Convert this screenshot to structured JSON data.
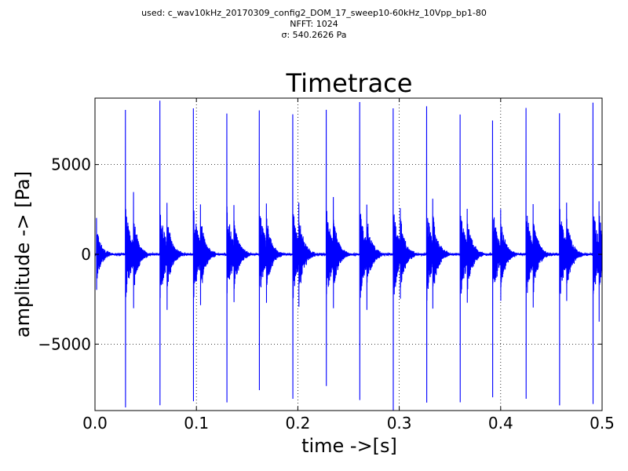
{
  "header": {
    "line1": "used: c_wav10kHz_20170309_config2_DOM_17_sweep10-60kHz_10Vpp_bp1-80",
    "line2": "NFFT: 1024",
    "line3": "σ: 540.2626 Pa"
  },
  "chart_data": {
    "type": "line",
    "title": "Timetrace",
    "xlabel": "time ->[s]",
    "ylabel": "amplitude -> [Pa]",
    "xlim": [
      0.0,
      0.5
    ],
    "ylim": [
      -8700,
      8700
    ],
    "xticks": [
      0.0,
      0.1,
      0.2,
      0.3,
      0.4,
      0.5
    ],
    "xtick_labels": [
      "0.0",
      "0.1",
      "0.2",
      "0.3",
      "0.4",
      "0.5"
    ],
    "yticks": [
      -5000,
      0,
      5000
    ],
    "ytick_labels": [
      "−5000",
      "0",
      "5000"
    ],
    "grid": true,
    "series_color": "#0000ff",
    "bursts": [
      {
        "t": 0.0015,
        "max": 2000,
        "min": -2000
      },
      {
        "t": 0.03,
        "max": 8000,
        "min": -8500
      },
      {
        "t": 0.038,
        "max": 2800,
        "min": -2700
      },
      {
        "t": 0.064,
        "max": 8500,
        "min": -8400
      },
      {
        "t": 0.071,
        "max": 2400,
        "min": -2700
      },
      {
        "t": 0.097,
        "max": 8100,
        "min": -8200
      },
      {
        "t": 0.104,
        "max": 2200,
        "min": -2300
      },
      {
        "t": 0.13,
        "max": 7900,
        "min": -8300
      },
      {
        "t": 0.137,
        "max": 2400,
        "min": -2200
      },
      {
        "t": 0.162,
        "max": 8000,
        "min": -7600
      },
      {
        "t": 0.169,
        "max": 2300,
        "min": -2200
      },
      {
        "t": 0.195,
        "max": 7800,
        "min": -8100
      },
      {
        "t": 0.201,
        "max": 2400,
        "min": -2300
      },
      {
        "t": 0.228,
        "max": 8000,
        "min": -7300
      },
      {
        "t": 0.235,
        "max": 2700,
        "min": -2500
      },
      {
        "t": 0.261,
        "max": 8500,
        "min": -8100
      },
      {
        "t": 0.268,
        "max": 2400,
        "min": -2400
      },
      {
        "t": 0.294,
        "max": 8100,
        "min": -8700
      },
      {
        "t": 0.301,
        "max": 2300,
        "min": -2200
      },
      {
        "t": 0.327,
        "max": 8200,
        "min": -8200
      },
      {
        "t": 0.333,
        "max": 2600,
        "min": -2200
      },
      {
        "t": 0.36,
        "max": 7800,
        "min": -8300
      },
      {
        "t": 0.367,
        "max": 2200,
        "min": -2400
      },
      {
        "t": 0.392,
        "max": 7400,
        "min": -8000
      },
      {
        "t": 0.4,
        "max": 2300,
        "min": -2200
      },
      {
        "t": 0.425,
        "max": 8200,
        "min": -8000
      },
      {
        "t": 0.432,
        "max": 2500,
        "min": -2400
      },
      {
        "t": 0.458,
        "max": 7900,
        "min": -8400
      },
      {
        "t": 0.465,
        "max": 2400,
        "min": -2300
      },
      {
        "t": 0.491,
        "max": 8400,
        "min": -8300
      },
      {
        "t": 0.497,
        "max": 2500,
        "min": -3000
      }
    ]
  }
}
